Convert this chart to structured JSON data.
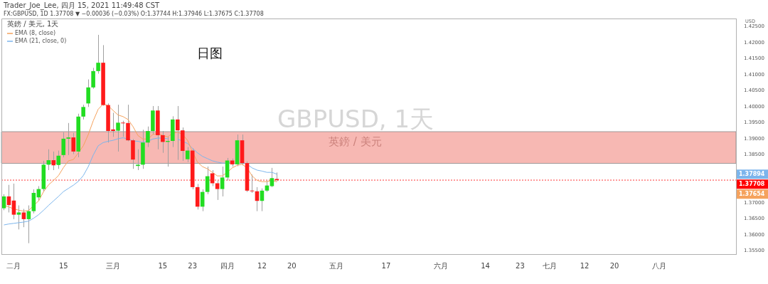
{
  "chart_data": {
    "type": "candlestick",
    "title": "日图",
    "ylabel": "USD",
    "annotations": [
      "Trader_Joe_Lee, 四月 15, 2021 11:49:48 CST",
      "FX:GBPUSD, 1D 1.37708 ▼ −0.00036 (−0.03%) O:1.37744 H:1.37946 L:1.37675 C:1.37708",
      "英鎊 / 美元, 1天",
      "GBPUSD, 1天",
      "英鎊 / 美元",
      "1.37894",
      "1.37654"
    ],
    "categories": [
      null,
      null,
      "二月",
      null,
      null,
      null,
      null,
      null,
      null,
      null,
      null,
      null,
      "15",
      null,
      null,
      null,
      null,
      null,
      null,
      null,
      null,
      null,
      "三月",
      null,
      null,
      null,
      null,
      null,
      null,
      null,
      null,
      null,
      "15",
      null,
      null,
      null,
      null,
      null,
      "23",
      null,
      null,
      null,
      null,
      null,
      null,
      "四月",
      null,
      null,
      null,
      null,
      null,
      null,
      "12",
      null,
      null,
      null,
      null,
      null,
      "20",
      null,
      null,
      null,
      null,
      null,
      null,
      null,
      null,
      "五月",
      null,
      null,
      null,
      null,
      null,
      null,
      null,
      null,
      null,
      "17",
      null,
      null,
      null,
      null,
      null,
      null,
      null,
      null,
      null,
      null,
      "六月",
      null,
      null,
      null,
      null,
      null,
      null,
      null,
      null,
      "14",
      null,
      null,
      null,
      null,
      null,
      null,
      "23",
      null,
      null,
      null,
      null,
      null,
      "七月",
      null,
      null,
      null,
      null,
      null,
      null,
      "12",
      null,
      null,
      null,
      null,
      null,
      "20",
      null,
      null,
      null,
      null,
      null,
      null,
      null,
      null,
      "八月",
      null,
      null,
      null,
      null,
      null,
      null,
      null,
      null,
      null,
      null,
      null,
      null,
      null,
      null,
      null
    ],
    "ohlc": [
      [
        1.3683,
        1.3727,
        1.3677,
        1.372
      ],
      [
        1.372,
        1.3756,
        1.367,
        1.3693
      ],
      [
        1.3707,
        1.376,
        1.3649,
        1.3663
      ],
      [
        1.3663,
        1.3692,
        1.3617,
        1.367
      ],
      [
        1.367,
        1.3681,
        1.3624,
        1.3649
      ],
      [
        1.3649,
        1.3692,
        1.3574,
        1.3674
      ],
      [
        1.3674,
        1.3742,
        1.3667,
        1.3731
      ],
      [
        1.3717,
        1.3752,
        1.3706,
        1.3743
      ],
      [
        1.3743,
        1.3831,
        1.3735,
        1.3819
      ],
      [
        1.3819,
        1.3867,
        1.3802,
        1.3833
      ],
      [
        1.3833,
        1.386,
        1.3802,
        1.3817
      ],
      [
        1.3818,
        1.3863,
        1.3806,
        1.3847
      ],
      [
        1.3849,
        1.392,
        1.3842,
        1.39
      ],
      [
        1.39,
        1.3949,
        1.3849,
        1.3904
      ],
      [
        1.3904,
        1.3918,
        1.3852,
        1.386
      ],
      [
        1.386,
        1.3978,
        1.3842,
        1.3969
      ],
      [
        1.3969,
        1.4006,
        1.396,
        1.3999
      ],
      [
        1.401,
        1.4085,
        1.3999,
        1.406
      ],
      [
        1.406,
        1.4121,
        1.4056,
        1.4111
      ],
      [
        1.4111,
        1.4224,
        1.4103,
        1.4137
      ],
      [
        1.4137,
        1.4192,
        1.4003,
        1.4005
      ],
      [
        1.4005,
        1.401,
        1.3888,
        1.3924
      ],
      [
        1.3929,
        1.3981,
        1.3906,
        1.3924
      ],
      [
        1.3925,
        1.4006,
        1.386,
        1.395
      ],
      [
        1.395,
        1.3956,
        1.3906,
        1.3948
      ],
      [
        1.3949,
        1.4006,
        1.3892,
        1.3895
      ],
      [
        1.3895,
        1.3899,
        1.3806,
        1.3835
      ],
      [
        1.3815,
        1.3867,
        1.3802,
        1.3819
      ],
      [
        1.3819,
        1.3928,
        1.3806,
        1.3888
      ],
      [
        1.3888,
        1.3938,
        1.3874,
        1.3924
      ],
      [
        1.3924,
        1.4002,
        1.3913,
        1.3988
      ],
      [
        1.3988,
        1.4002,
        1.3867,
        1.3911
      ],
      [
        1.3911,
        1.3924,
        1.3856,
        1.389
      ],
      [
        1.389,
        1.3906,
        1.3813,
        1.3893
      ],
      [
        1.3893,
        1.397,
        1.3874,
        1.396
      ],
      [
        1.396,
        1.4002,
        1.3834,
        1.3926
      ],
      [
        1.3926,
        1.3935,
        1.3831,
        1.3862
      ],
      [
        1.3836,
        1.3874,
        1.3827,
        1.3863
      ],
      [
        1.3863,
        1.387,
        1.3742,
        1.3749
      ],
      [
        1.3749,
        1.3759,
        1.3679,
        1.3688
      ],
      [
        1.3688,
        1.3742,
        1.3674,
        1.3734
      ],
      [
        1.3734,
        1.3813,
        1.3727,
        1.3783
      ],
      [
        1.3792,
        1.3802,
        1.3752,
        1.3761
      ],
      [
        1.3761,
        1.377,
        1.3709,
        1.3743
      ],
      [
        1.3743,
        1.3813,
        1.372,
        1.3779
      ],
      [
        1.3779,
        1.384,
        1.377,
        1.3832
      ],
      [
        1.3832,
        1.3838,
        1.3813,
        1.382
      ],
      [
        1.382,
        1.3913,
        1.3814,
        1.3895
      ],
      [
        1.3895,
        1.3913,
        1.3817,
        1.3824
      ],
      [
        1.3824,
        1.3829,
        1.3734,
        1.3738
      ],
      [
        1.3738,
        1.3788,
        1.3731,
        1.3736
      ],
      [
        1.3736,
        1.3749,
        1.3674,
        1.3706
      ],
      [
        1.3706,
        1.3745,
        1.3674,
        1.3738
      ],
      [
        1.3738,
        1.377,
        1.3734,
        1.3754
      ],
      [
        1.3752,
        1.3809,
        1.3749,
        1.3777
      ],
      [
        1.37744,
        1.37946,
        1.37675,
        1.37708
      ],
      null,
      null,
      null,
      null,
      null,
      null,
      null,
      null,
      null,
      null,
      null,
      null,
      null,
      null,
      null,
      null,
      null,
      null,
      null,
      null,
      null,
      null,
      null,
      null,
      null,
      null,
      null,
      null,
      null,
      null,
      null,
      null,
      null,
      null,
      null,
      null,
      null,
      null,
      null,
      null,
      null,
      null,
      null,
      null,
      null,
      null,
      null,
      null,
      null,
      null,
      null,
      null,
      null,
      null,
      null,
      null,
      null,
      null,
      null,
      null,
      null,
      null,
      null,
      null,
      null,
      null,
      null,
      null,
      null,
      null,
      null,
      null,
      null,
      null,
      null,
      null,
      null,
      null,
      null,
      null,
      null,
      null,
      null,
      null,
      null,
      null,
      null,
      null,
      null,
      null,
      null,
      null
    ],
    "colors": [
      "#22dd22",
      "#ff1a1a",
      "#ff1a1a",
      "#22dd22",
      "#ff1a1a",
      "#22dd22",
      "#22dd22",
      "#22dd22",
      "#22dd22",
      "#22dd22",
      "#ff1a1a",
      "#22dd22",
      "#22dd22",
      "#22dd22",
      "#ff1a1a",
      "#22dd22",
      "#22dd22",
      "#22dd22",
      "#22dd22",
      "#22dd22",
      "#ff1a1a",
      "#ff1a1a",
      "#ff1a1a",
      "#22dd22",
      "#ff1a1a",
      "#ff1a1a",
      "#ff1a1a",
      "#22dd22",
      "#22dd22",
      "#22dd22",
      "#22dd22",
      "#ff1a1a",
      "#ff1a1a",
      "#22dd22",
      "#22dd22",
      "#ff1a1a",
      "#ff1a1a",
      "#22dd22",
      "#ff1a1a",
      "#ff1a1a",
      "#22dd22",
      "#22dd22",
      "#ff1a1a",
      "#ff1a1a",
      "#22dd22",
      "#22dd22",
      "#ff1a1a",
      "#22dd22",
      "#ff1a1a",
      "#ff1a1a",
      "#ff1a1a",
      "#ff1a1a",
      "#22dd22",
      "#22dd22",
      "#22dd22",
      "#ff1a1a",
      null,
      null,
      null,
      null,
      null,
      null,
      null,
      null,
      null,
      null,
      null,
      null,
      null,
      null,
      null,
      null,
      null,
      null,
      null,
      null,
      null,
      null,
      null,
      null,
      null,
      null,
      null,
      null,
      null,
      null,
      null,
      null,
      null,
      null,
      null,
      null,
      null,
      null,
      null,
      null,
      null,
      null,
      null,
      null,
      null,
      null,
      null,
      null,
      null,
      null,
      null,
      null,
      null,
      null,
      null,
      null,
      null,
      null,
      null,
      null,
      null,
      null,
      null,
      null,
      null,
      null,
      null,
      null,
      null,
      null,
      null,
      null,
      null,
      null,
      null,
      null,
      null,
      null,
      null,
      null,
      null,
      null,
      null,
      null,
      null,
      null,
      null,
      null,
      null,
      null,
      null,
      null
    ],
    "series": [
      {
        "name": "EMA (8, close)",
        "type": "line",
        "color": "#f5a25d",
        "values": [
          1.3692,
          1.3687,
          1.3681,
          1.3677,
          1.3674,
          1.3676,
          1.3692,
          1.3706,
          1.3735,
          1.3756,
          1.377,
          1.3785,
          1.381,
          1.3831,
          1.3835,
          1.3856,
          1.3878,
          1.3913,
          1.3956,
          1.3992,
          1.4008,
          1.4003,
          1.3988,
          1.3974,
          1.3969,
          1.396,
          1.3938,
          1.391,
          1.3899,
          1.3899,
          1.3913,
          1.3917,
          1.391,
          1.3906,
          1.3917,
          1.392,
          1.3913,
          1.3895,
          1.3859,
          1.3827,
          1.3813,
          1.3806,
          1.3795,
          1.3784,
          1.3784,
          1.3795,
          1.3809,
          1.3817,
          1.382,
          1.3809,
          1.3784,
          1.377,
          1.3766,
          1.3766,
          1.377,
          1.37654,
          null,
          null,
          null,
          null,
          null,
          null,
          null,
          null,
          null,
          null,
          null,
          null,
          null,
          null,
          null,
          null,
          null,
          null,
          null,
          null,
          null,
          null,
          null,
          null,
          null,
          null,
          null,
          null,
          null,
          null,
          null,
          null,
          null,
          null,
          null,
          null,
          null,
          null,
          null,
          null,
          null,
          null,
          null,
          null,
          null,
          null,
          null,
          null,
          null,
          null,
          null,
          null,
          null,
          null,
          null,
          null,
          null,
          null,
          null,
          null,
          null,
          null,
          null,
          null,
          null,
          null,
          null,
          null,
          null,
          null,
          null,
          null,
          null,
          null,
          null,
          null,
          null,
          null,
          null,
          null,
          null,
          null,
          null,
          null,
          null,
          null,
          null,
          null,
          null,
          null,
          null,
          null
        ]
      },
      {
        "name": "EMA (21, close, 0)",
        "type": "line",
        "color": "#7cb5ec",
        "values": [
          1.3631,
          1.3634,
          1.3636,
          1.3638,
          1.364,
          1.3643,
          1.3652,
          1.3663,
          1.3677,
          1.3692,
          1.3706,
          1.372,
          1.3735,
          1.3745,
          1.3755,
          1.3767,
          1.3785,
          1.3813,
          1.3849,
          1.3878,
          1.3888,
          1.3892,
          1.3895,
          1.39,
          1.3903,
          1.3899,
          1.3893,
          1.3892,
          1.3888,
          1.3892,
          1.3899,
          1.3902,
          1.3902,
          1.39,
          null,
          1.3899,
          1.3892,
          1.3885,
          1.387,
          1.3856,
          1.3845,
          1.3838,
          1.3831,
          1.3827,
          1.3824,
          1.3824,
          1.3827,
          null,
          1.3827,
          1.382,
          1.3809,
          1.3802,
          1.3799,
          1.3795,
          1.3795,
          1.37894,
          null,
          null,
          null,
          null,
          null,
          null,
          null,
          null,
          null,
          null,
          null,
          null,
          null,
          null,
          null,
          null,
          null,
          null,
          null,
          null,
          null,
          null,
          null,
          null,
          null,
          null,
          null,
          null,
          null,
          null,
          null,
          null,
          null,
          null,
          null,
          null,
          null,
          null,
          null,
          null,
          null,
          null,
          null,
          null,
          null,
          null,
          null,
          null,
          null,
          null,
          null,
          null,
          null,
          null,
          null,
          null,
          null,
          null,
          null,
          null,
          null,
          null,
          null,
          null,
          null,
          null,
          null,
          null,
          null,
          null,
          null,
          null,
          null,
          null,
          null,
          null,
          null,
          null,
          null,
          null,
          null,
          null,
          null,
          null,
          null,
          null,
          null,
          null,
          null,
          null,
          null,
          null
        ]
      }
    ],
    "ylim": [
      1.354,
      1.4275
    ],
    "yticks": [
      {
        "value": 1.355,
        "label": "1.35500"
      },
      {
        "value": 1.36,
        "label": "1.36000"
      },
      {
        "value": 1.365,
        "label": "1.36500"
      },
      {
        "value": 1.37,
        "label": "1.37000"
      },
      {
        "value": 1.385,
        "label": "1.38500"
      },
      {
        "value": 1.39,
        "label": "1.39000"
      },
      {
        "value": 1.395,
        "label": "1.39500"
      },
      {
        "value": 1.4,
        "label": "1.40000"
      },
      {
        "value": 1.405,
        "label": "1.40500"
      },
      {
        "value": 1.41,
        "label": "1.41000"
      },
      {
        "value": 1.415,
        "label": "1.41500"
      },
      {
        "value": 1.42,
        "label": "1.42000"
      },
      {
        "value": 1.425,
        "label": "1.42500"
      }
    ],
    "ref_lines": [
      {
        "axis": "y",
        "value": 1.37708,
        "label": "1.37708",
        "color": "#ff0000",
        "line_style": "dotted"
      }
    ],
    "bands": [
      {
        "axis": "y",
        "from": 1.3823,
        "to": 1.3922,
        "color": "#f4a09a"
      }
    ],
    "legend": "top left",
    "marker": "none",
    "grid": false
  }
}
